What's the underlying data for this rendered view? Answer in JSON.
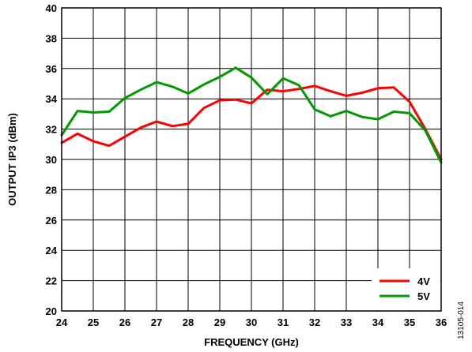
{
  "chart_data": {
    "type": "line",
    "xlabel": "FREQUENCY (GHz)",
    "ylabel": "OUTPUT IP3 (dBm)",
    "xlim": [
      24,
      36
    ],
    "ylim": [
      20,
      40
    ],
    "x_ticks": [
      24,
      25,
      26,
      27,
      28,
      29,
      30,
      31,
      32,
      33,
      34,
      35,
      36
    ],
    "y_ticks": [
      20,
      22,
      24,
      26,
      28,
      30,
      32,
      34,
      36,
      38,
      40
    ],
    "grid": true,
    "legend_position": "bottom-right",
    "series": [
      {
        "name": "4V",
        "color": "#ff0000",
        "x": [
          24,
          24.5,
          25,
          25.5,
          26,
          26.5,
          27,
          27.5,
          28,
          28.5,
          29,
          29.5,
          30,
          30.5,
          31,
          31.5,
          32,
          32.5,
          33,
          33.5,
          34,
          34.5,
          35,
          35.5,
          36
        ],
        "y": [
          31.1,
          31.7,
          31.2,
          30.9,
          31.5,
          32.1,
          32.5,
          32.2,
          32.35,
          33.4,
          33.9,
          33.95,
          33.7,
          34.6,
          34.5,
          34.65,
          34.85,
          34.5,
          34.2,
          34.4,
          34.7,
          34.75,
          33.8,
          32.0,
          30.0
        ]
      },
      {
        "name": "5V",
        "color": "#009900",
        "x": [
          24,
          24.5,
          25,
          25.5,
          26,
          26.5,
          27,
          27.5,
          28,
          28.5,
          29,
          29.5,
          30,
          30.5,
          31,
          31.5,
          32,
          32.5,
          33,
          33.5,
          34,
          34.5,
          35,
          35.5,
          36
        ],
        "y": [
          31.6,
          33.2,
          33.1,
          33.15,
          34.05,
          34.6,
          35.1,
          34.8,
          34.35,
          34.95,
          35.45,
          36.05,
          35.4,
          34.3,
          35.35,
          34.9,
          33.3,
          32.85,
          33.2,
          32.8,
          32.65,
          33.15,
          33.05,
          31.9,
          29.8
        ]
      }
    ]
  },
  "figure_id": "13105-014"
}
